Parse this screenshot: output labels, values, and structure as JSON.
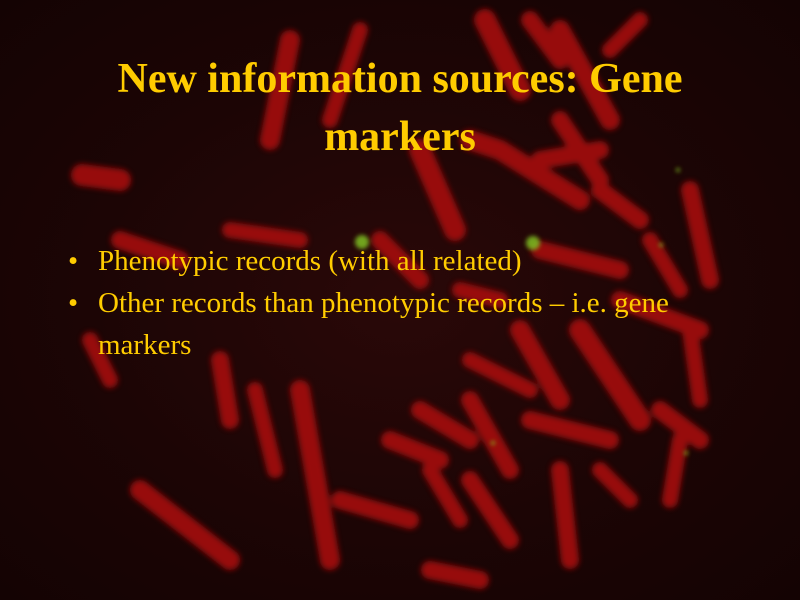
{
  "slide": {
    "title": "New information sources: Gene markers",
    "bullets": [
      {
        "marker": "•",
        "text": "Phenotypic records (with all related)"
      },
      {
        "marker": "•",
        "text": "Other records than phenotypic records – i.e. gene markers"
      }
    ]
  },
  "colors": {
    "background": "#1a0606",
    "text": "#ffcc00",
    "chromosome": "#b01010",
    "signal": "#7fbf20"
  }
}
